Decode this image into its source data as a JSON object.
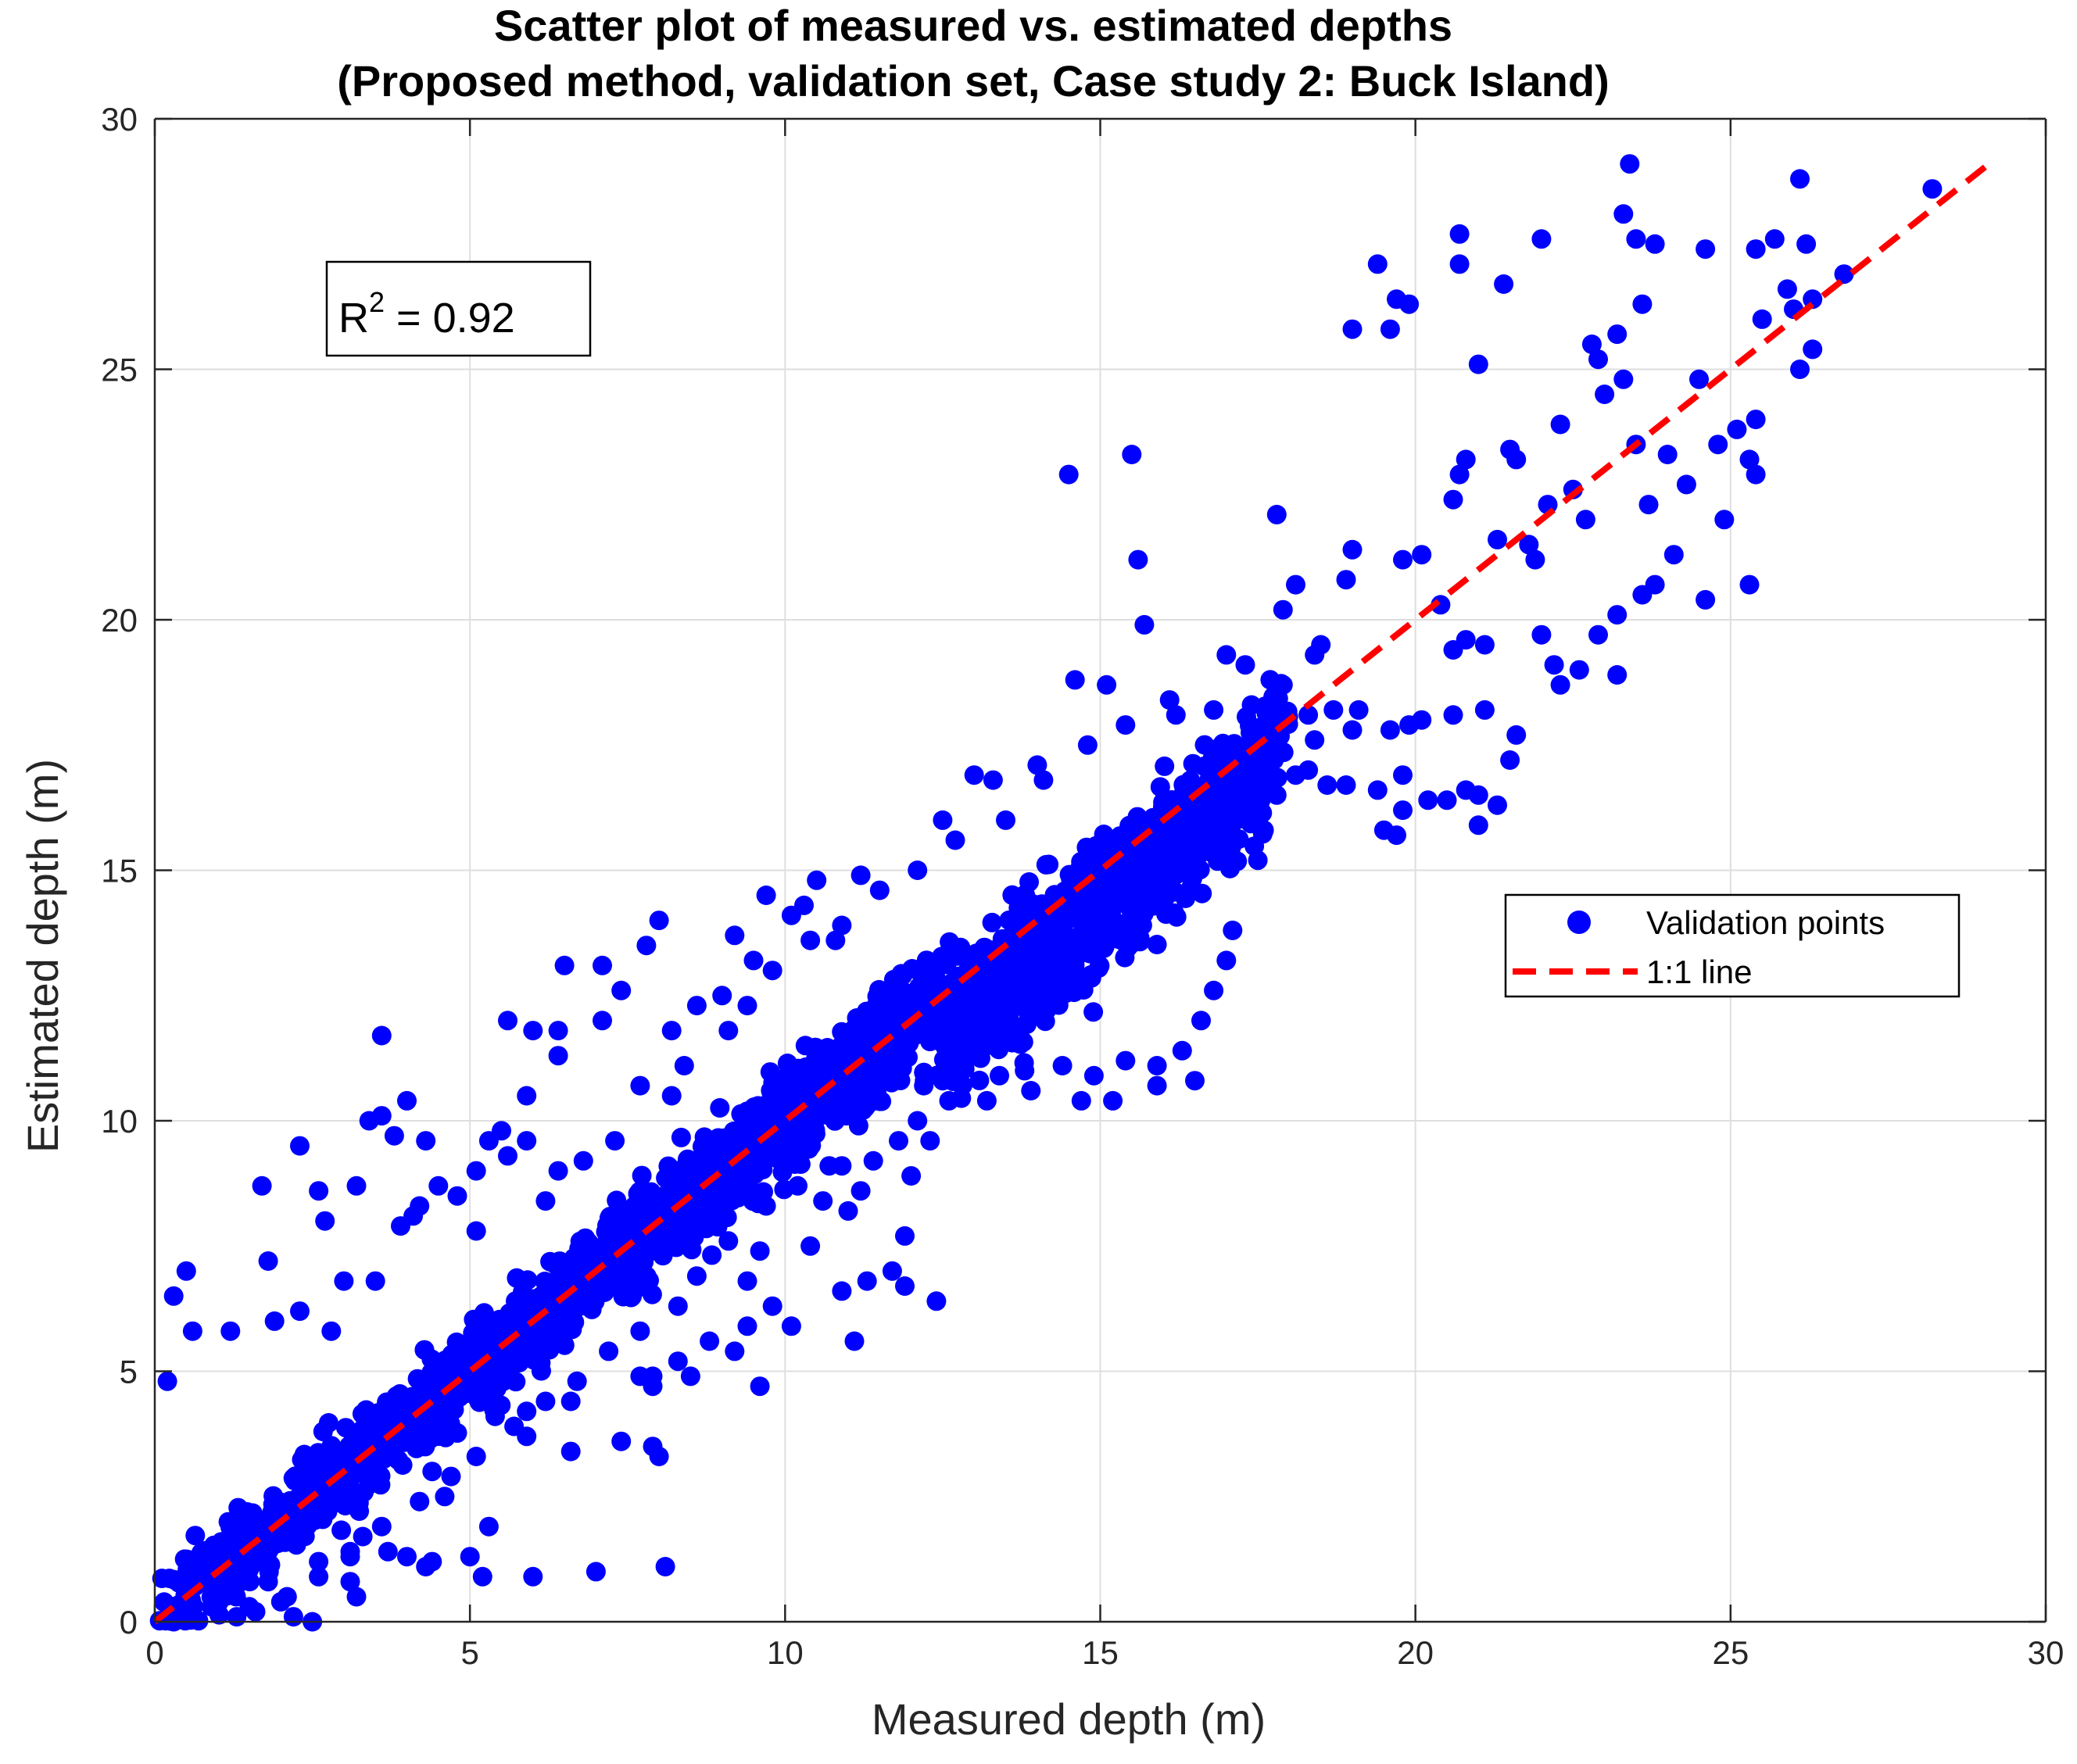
{
  "colors": {
    "points": "#0000ff",
    "line": "#ff0000",
    "axis": "#262626",
    "grid": "#dedede",
    "background": "#ffffff"
  },
  "chart_data": {
    "type": "scatter",
    "title": "Scatter plot of measured vs. estimated depths",
    "subtitle": "(Proposed method, validation set, Case study 2: Buck Island)",
    "xlabel": "Measured depth (m)",
    "ylabel": "Estimated depth (m)",
    "xlim": [
      0,
      30
    ],
    "ylim": [
      0,
      30
    ],
    "xticks": [
      0,
      5,
      10,
      15,
      20,
      25,
      30
    ],
    "yticks": [
      0,
      5,
      10,
      15,
      20,
      25,
      30
    ],
    "grid": true,
    "legend_position": "right",
    "annotation": {
      "label": "R",
      "superscript": "2",
      "value_text": " = 0.92",
      "r_squared": 0.92
    },
    "series": [
      {
        "name": "Validation points",
        "kind": "scatter",
        "color": "#0000ff",
        "marker": "filled-circle",
        "dense_band": {
          "description_free": true,
          "x_range": [
            0,
            18
          ],
          "spread": [
            [
              0,
              1.3
            ],
            [
              5,
              1.4
            ],
            [
              10,
              1.5
            ],
            [
              15,
              1.7
            ],
            [
              18,
              1.2
            ]
          ]
        },
        "points": [
          [
            0.3,
            6.5
          ],
          [
            0.5,
            7.0
          ],
          [
            1.7,
            8.7
          ],
          [
            1.8,
            7.2
          ],
          [
            2.3,
            9.5
          ],
          [
            2.6,
            8.6
          ],
          [
            2.7,
            8.0
          ],
          [
            3.2,
            8.7
          ],
          [
            3.6,
            11.7
          ],
          [
            3.4,
            10.0
          ],
          [
            3.6,
            10.1
          ],
          [
            4.0,
            10.4
          ],
          [
            3.8,
            9.7
          ],
          [
            4.3,
            9.6
          ],
          [
            4.2,
            8.3
          ],
          [
            5.3,
            9.6
          ],
          [
            5.5,
            9.8
          ],
          [
            5.6,
            12.0
          ],
          [
            6.0,
            11.8
          ],
          [
            6.4,
            11.8
          ],
          [
            5.9,
            10.5
          ],
          [
            6.4,
            11.3
          ],
          [
            6.5,
            13.1
          ],
          [
            7.1,
            13.1
          ],
          [
            7.4,
            12.6
          ],
          [
            7.1,
            12.0
          ],
          [
            7.8,
            13.5
          ],
          [
            8.0,
            14.0
          ],
          [
            8.6,
            12.3
          ],
          [
            8.2,
            11.8
          ],
          [
            9.0,
            12.5
          ],
          [
            9.2,
            13.7
          ],
          [
            9.5,
            13.2
          ],
          [
            9.7,
            14.5
          ],
          [
            10.1,
            14.1
          ],
          [
            10.5,
            14.8
          ],
          [
            10.3,
            14.3
          ],
          [
            10.8,
            13.6
          ],
          [
            11.2,
            14.9
          ],
          [
            12.5,
            16.0
          ],
          [
            13.0,
            16.9
          ],
          [
            13.3,
            16.8
          ],
          [
            14.0,
            17.1
          ],
          [
            14.5,
            22.9
          ],
          [
            14.6,
            18.8
          ],
          [
            15.1,
            18.7
          ],
          [
            15.5,
            23.3
          ],
          [
            15.6,
            21.2
          ],
          [
            15.7,
            19.9
          ],
          [
            16.1,
            18.4
          ],
          [
            17.0,
            19.3
          ],
          [
            17.3,
            19.1
          ],
          [
            17.8,
            22.1
          ],
          [
            17.9,
            20.2
          ],
          [
            18.1,
            20.7
          ],
          [
            18.5,
            19.5
          ],
          [
            18.9,
            20.8
          ],
          [
            19.0,
            21.4
          ],
          [
            19.0,
            25.8
          ],
          [
            19.4,
            27.1
          ],
          [
            19.6,
            25.8
          ],
          [
            19.7,
            26.4
          ],
          [
            19.9,
            26.3
          ],
          [
            19.8,
            21.2
          ],
          [
            20.1,
            21.3
          ],
          [
            20.4,
            20.3
          ],
          [
            20.6,
            22.4
          ],
          [
            20.7,
            22.9
          ],
          [
            20.8,
            23.2
          ],
          [
            20.7,
            27.7
          ],
          [
            20.7,
            27.1
          ],
          [
            21.0,
            25.1
          ],
          [
            21.3,
            21.6
          ],
          [
            21.4,
            26.7
          ],
          [
            21.5,
            23.4
          ],
          [
            21.6,
            23.2
          ],
          [
            21.8,
            21.5
          ],
          [
            21.9,
            21.2
          ],
          [
            22.0,
            27.6
          ],
          [
            22.1,
            22.3
          ],
          [
            22.3,
            23.9
          ],
          [
            22.5,
            22.6
          ],
          [
            22.7,
            22.0
          ],
          [
            22.8,
            25.5
          ],
          [
            22.9,
            25.2
          ],
          [
            23.0,
            24.5
          ],
          [
            23.2,
            25.7
          ],
          [
            23.3,
            24.8
          ],
          [
            23.3,
            28.1
          ],
          [
            23.4,
            29.1
          ],
          [
            23.5,
            27.6
          ],
          [
            23.8,
            27.5
          ],
          [
            23.6,
            26.3
          ],
          [
            23.5,
            23.5
          ],
          [
            23.7,
            22.3
          ],
          [
            24.0,
            23.3
          ],
          [
            24.3,
            22.7
          ],
          [
            24.5,
            24.8
          ],
          [
            24.6,
            27.4
          ],
          [
            24.8,
            23.5
          ],
          [
            24.9,
            22.0
          ],
          [
            25.1,
            23.8
          ],
          [
            25.3,
            23.2
          ],
          [
            25.4,
            22.9
          ],
          [
            25.4,
            24.0
          ],
          [
            25.5,
            26.0
          ],
          [
            25.4,
            27.4
          ],
          [
            25.7,
            27.6
          ],
          [
            25.9,
            26.6
          ],
          [
            26.0,
            26.2
          ],
          [
            26.1,
            25.0
          ],
          [
            26.1,
            28.8
          ],
          [
            26.2,
            27.5
          ],
          [
            26.3,
            25.4
          ],
          [
            26.3,
            26.4
          ],
          [
            26.8,
            26.9
          ],
          [
            28.2,
            28.6
          ],
          [
            25.3,
            20.7
          ],
          [
            24.6,
            20.4
          ],
          [
            24.1,
            21.3
          ],
          [
            23.8,
            20.7
          ],
          [
            23.6,
            20.5
          ],
          [
            23.2,
            20.1
          ],
          [
            23.2,
            18.9
          ],
          [
            22.9,
            19.7
          ],
          [
            22.6,
            19.0
          ],
          [
            22.3,
            18.7
          ],
          [
            22.2,
            19.1
          ],
          [
            22.0,
            19.7
          ],
          [
            21.6,
            17.7
          ],
          [
            21.5,
            17.2
          ],
          [
            21.1,
            18.2
          ],
          [
            21.1,
            19.5
          ],
          [
            20.8,
            19.6
          ],
          [
            20.6,
            19.4
          ],
          [
            20.6,
            18.1
          ],
          [
            20.5,
            16.4
          ],
          [
            20.8,
            16.6
          ],
          [
            21.0,
            16.5
          ],
          [
            21.3,
            16.3
          ],
          [
            21.0,
            15.9
          ],
          [
            20.2,
            16.4
          ],
          [
            20.1,
            18.0
          ],
          [
            19.9,
            17.9
          ],
          [
            19.8,
            16.2
          ],
          [
            19.7,
            15.7
          ],
          [
            19.5,
            15.8
          ],
          [
            19.4,
            16.6
          ],
          [
            19.8,
            16.9
          ],
          [
            19.6,
            17.8
          ],
          [
            19.1,
            18.2
          ],
          [
            19.0,
            17.8
          ],
          [
            18.9,
            16.7
          ],
          [
            18.6,
            16.7
          ],
          [
            18.3,
            17.0
          ],
          [
            18.3,
            18.1
          ],
          [
            16.5,
            10.8
          ],
          [
            15.9,
            10.7
          ],
          [
            15.2,
            10.4
          ],
          [
            14.7,
            10.4
          ],
          [
            13.8,
            11.0
          ],
          [
            13.2,
            10.4
          ],
          [
            12.5,
            10.8
          ],
          [
            12.6,
            10.4
          ],
          [
            12.2,
            10.7
          ],
          [
            12.3,
            9.6
          ],
          [
            11.8,
            9.6
          ],
          [
            12.1,
            10.0
          ],
          [
            11.2,
            8.6
          ],
          [
            11.0,
            8.2
          ],
          [
            10.6,
            8.4
          ],
          [
            10.9,
            9.1
          ],
          [
            11.4,
            9.2
          ],
          [
            12.0,
            8.9
          ],
          [
            11.9,
            7.7
          ],
          [
            12.4,
            6.4
          ],
          [
            11.9,
            6.7
          ],
          [
            11.7,
            7.0
          ],
          [
            11.3,
            6.8
          ],
          [
            10.9,
            6.6
          ],
          [
            11.1,
            5.6
          ],
          [
            10.1,
            5.9
          ],
          [
            10.4,
            7.5
          ],
          [
            9.6,
            7.4
          ],
          [
            9.4,
            6.8
          ],
          [
            9.8,
            6.3
          ],
          [
            9.4,
            5.9
          ],
          [
            9.6,
            4.7
          ],
          [
            9.2,
            5.4
          ],
          [
            8.8,
            5.6
          ],
          [
            8.5,
            4.9
          ],
          [
            8.3,
            5.2
          ],
          [
            7.9,
            4.9
          ],
          [
            7.9,
            4.7
          ],
          [
            7.7,
            4.9
          ],
          [
            8.0,
            3.3
          ],
          [
            7.9,
            3.5
          ],
          [
            7.4,
            3.6
          ],
          [
            6.6,
            3.4
          ],
          [
            6.6,
            4.4
          ],
          [
            5.9,
            4.2
          ],
          [
            5.9,
            3.7
          ],
          [
            5.4,
            4.1
          ],
          [
            5.3,
            1.9
          ],
          [
            5.0,
            1.3
          ],
          [
            5.2,
            0.9
          ],
          [
            4.4,
            1.2
          ],
          [
            4.3,
            1.1
          ],
          [
            4.0,
            1.3
          ],
          [
            6.0,
            0.9
          ],
          [
            7.0,
            1.0
          ],
          [
            8.1,
            1.1
          ],
          [
            4.6,
            2.5
          ],
          [
            4.4,
            3.0
          ],
          [
            3.7,
            1.4
          ],
          [
            3.3,
            1.7
          ],
          [
            3.1,
            1.4
          ],
          [
            2.6,
            1.2
          ],
          [
            2.5,
            0.0
          ],
          [
            3.2,
            0.5
          ],
          [
            3.1,
            0.8
          ],
          [
            2.2,
            0.1
          ],
          [
            1.6,
            0.2
          ],
          [
            1.8,
            0.8
          ],
          [
            2.0,
            0.4
          ],
          [
            1.3,
            0.1
          ],
          [
            0.9,
            0.3
          ],
          [
            0.3,
            0.0
          ],
          [
            0.5,
            0.9
          ],
          [
            0.2,
            4.8
          ],
          [
            0.6,
            5.8
          ],
          [
            1.2,
            5.8
          ],
          [
            1.9,
            6.0
          ],
          [
            2.3,
            6.2
          ],
          [
            2.8,
            5.8
          ],
          [
            3.0,
            6.8
          ],
          [
            3.5,
            6.8
          ],
          [
            3.9,
            7.9
          ],
          [
            4.1,
            8.1
          ],
          [
            4.5,
            8.7
          ],
          [
            4.8,
            8.5
          ],
          [
            5.1,
            9.0
          ],
          [
            5.1,
            7.8
          ],
          [
            5.6,
            9.3
          ],
          [
            5.9,
            9.6
          ],
          [
            6.2,
            8.4
          ],
          [
            6.4,
            9.0
          ],
          [
            6.8,
            9.2
          ],
          [
            7.3,
            9.6
          ],
          [
            7.7,
            10.7
          ],
          [
            8.2,
            10.5
          ],
          [
            8.4,
            11.1
          ],
          [
            9.1,
            11.8
          ],
          [
            9.4,
            12.3
          ],
          [
            9.8,
            13.0
          ],
          [
            10.4,
            13.6
          ],
          [
            10.9,
            13.9
          ],
          [
            11.5,
            14.6
          ],
          [
            12.1,
            15.0
          ],
          [
            12.7,
            15.6
          ],
          [
            13.5,
            16.0
          ],
          [
            14.1,
            16.8
          ],
          [
            14.8,
            17.5
          ],
          [
            15.4,
            17.9
          ],
          [
            16.2,
            18.1
          ],
          [
            16.8,
            18.2
          ],
          [
            17.4,
            18.3
          ],
          [
            17.9,
            18.7
          ],
          [
            18.4,
            19.3
          ],
          [
            18.7,
            18.2
          ],
          [
            18.4,
            17.6
          ],
          [
            18.1,
            16.9
          ],
          [
            17.8,
            16.5
          ],
          [
            17.6,
            15.8
          ],
          [
            17.5,
            15.2
          ],
          [
            17.1,
            13.8
          ],
          [
            17.0,
            13.2
          ],
          [
            16.8,
            12.6
          ],
          [
            16.6,
            12.0
          ],
          [
            16.3,
            11.4
          ],
          [
            15.9,
            11.1
          ],
          [
            15.4,
            11.2
          ],
          [
            14.9,
            10.9
          ],
          [
            14.4,
            11.1
          ],
          [
            13.9,
            10.6
          ],
          [
            13.4,
            10.9
          ],
          [
            10.7,
            9.1
          ],
          [
            10.2,
            8.7
          ],
          [
            9.7,
            8.3
          ],
          [
            9.1,
            7.6
          ],
          [
            8.6,
            6.9
          ],
          [
            8.3,
            6.3
          ],
          [
            7.7,
            5.8
          ],
          [
            7.2,
            5.4
          ],
          [
            6.7,
            4.8
          ],
          [
            6.2,
            4.4
          ],
          [
            5.7,
            3.9
          ],
          [
            5.1,
            3.3
          ],
          [
            4.7,
            2.9
          ],
          [
            4.2,
            2.4
          ],
          [
            3.6,
            1.9
          ],
          [
            3.1,
            1.3
          ],
          [
            2.6,
            0.9
          ],
          [
            2.1,
            0.5
          ],
          [
            1.5,
            0.3
          ]
        ]
      },
      {
        "name": "1:1 line",
        "kind": "line",
        "style": "dashed",
        "color": "#ff0000",
        "x": [
          0,
          29.2
        ],
        "y": [
          0,
          29.2
        ]
      }
    ]
  }
}
